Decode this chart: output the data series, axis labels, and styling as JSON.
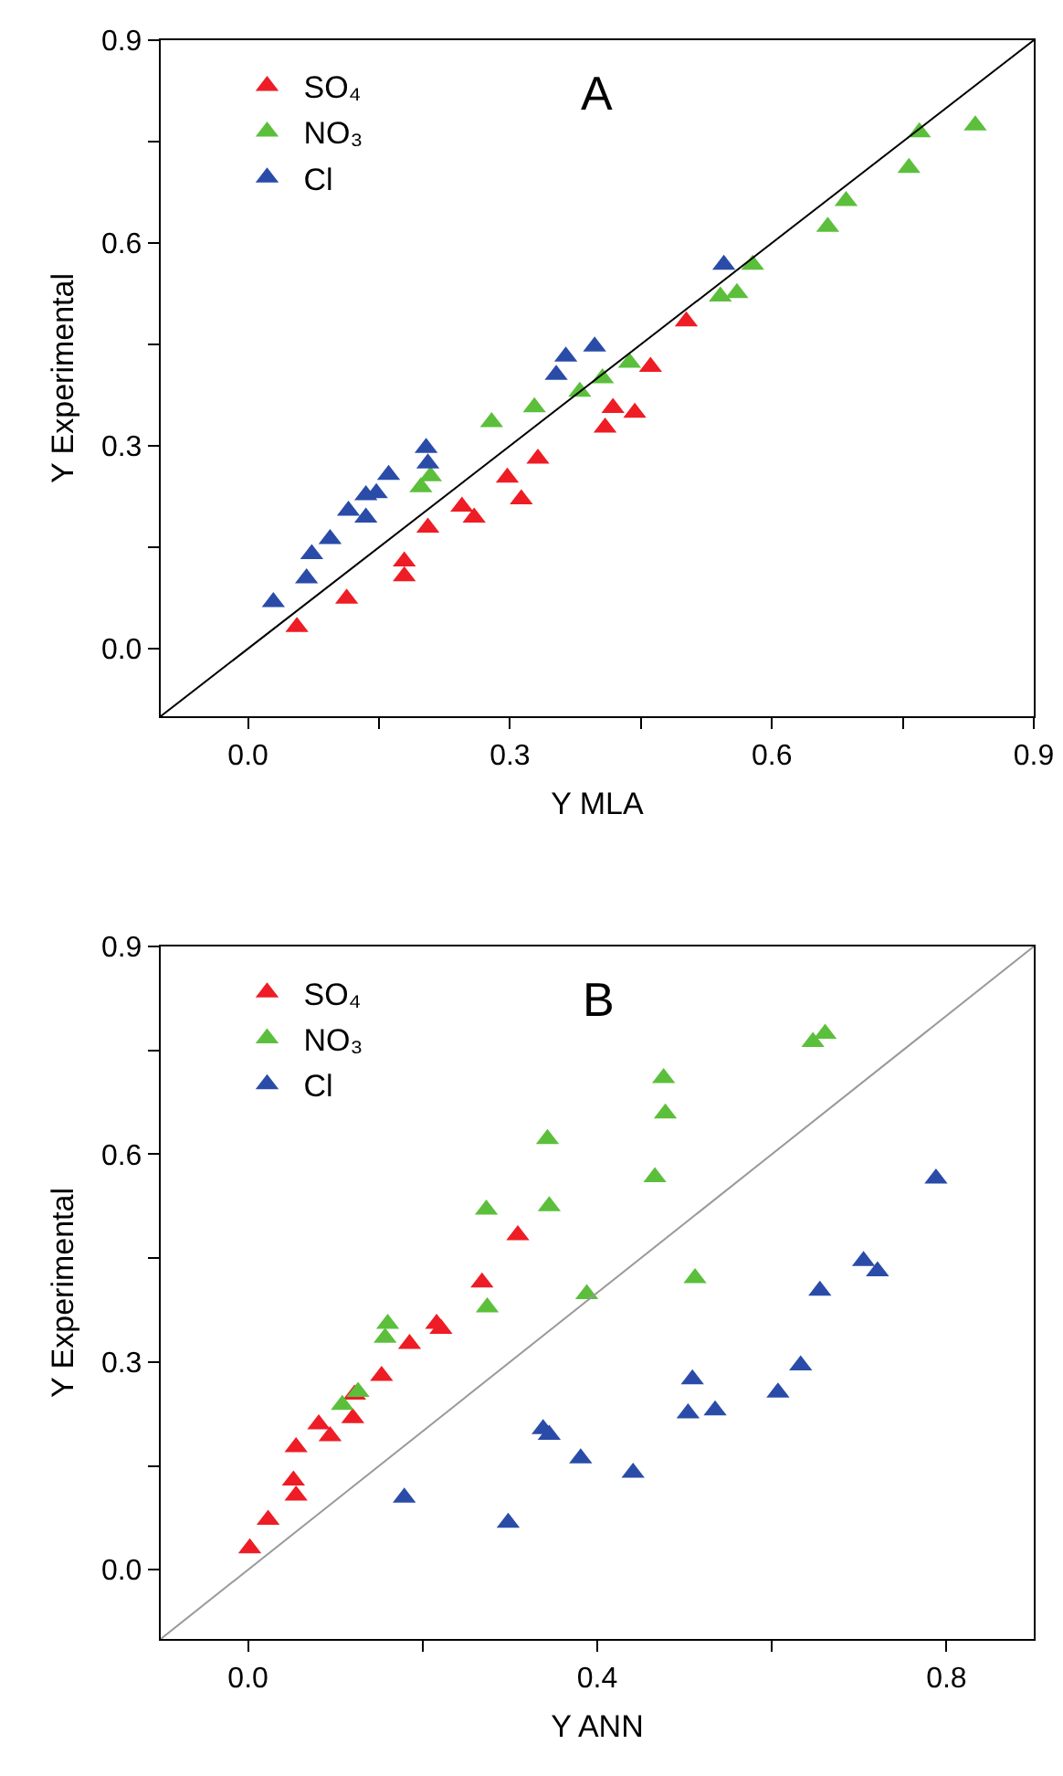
{
  "chart_data": [
    {
      "type": "scatter",
      "title": "A",
      "xlabel": "Y MLA",
      "ylabel": "Y Experimental",
      "xlim": [
        -0.1,
        0.9
      ],
      "ylim": [
        -0.1,
        0.9
      ],
      "xticks": [
        {
          "value": 0,
          "label": "0.0"
        },
        {
          "value": 0.15,
          "label": null
        },
        0.3,
        {
          "value": 0.45,
          "label": null
        },
        0.6,
        {
          "value": 0.75,
          "label": null
        },
        0.9
      ],
      "yticks": [
        {
          "value": 0,
          "label": "0.0"
        },
        {
          "value": 0.15,
          "label": null
        },
        0.3,
        {
          "value": 0.45,
          "label": null
        },
        0.6,
        {
          "value": 0.75,
          "label": null
        },
        0.9
      ],
      "legend": "top left",
      "marker": "triangle",
      "series": [
        {
          "name": "SO₄",
          "color": "#ee1c25",
          "x": [
            0.056,
            0.113,
            0.179,
            0.179,
            0.206,
            0.245,
            0.259,
            0.297,
            0.313,
            0.332,
            0.409,
            0.418,
            0.443,
            0.461,
            0.502
          ],
          "values": [
            0.032,
            0.074,
            0.129,
            0.107,
            0.179,
            0.21,
            0.194,
            0.253,
            0.221,
            0.281,
            0.327,
            0.356,
            0.349,
            0.417,
            0.484
          ]
        },
        {
          "name": "NO₃",
          "color": "#5cbf3c",
          "x": [
            0.198,
            0.209,
            0.279,
            0.328,
            0.38,
            0.406,
            0.437,
            0.541,
            0.56,
            0.578,
            0.664,
            0.685,
            0.757,
            0.769,
            0.833
          ],
          "values": [
            0.239,
            0.255,
            0.335,
            0.357,
            0.38,
            0.4,
            0.423,
            0.521,
            0.526,
            0.568,
            0.624,
            0.662,
            0.711,
            0.764,
            0.774
          ]
        },
        {
          "name": "Cl",
          "color": "#2a4ca8",
          "x": [
            0.029,
            0.067,
            0.073,
            0.094,
            0.115,
            0.135,
            0.135,
            0.147,
            0.161,
            0.204,
            0.206,
            0.353,
            0.364,
            0.397,
            0.545
          ],
          "values": [
            0.069,
            0.104,
            0.14,
            0.162,
            0.204,
            0.194,
            0.227,
            0.23,
            0.257,
            0.297,
            0.274,
            0.405,
            0.432,
            0.447,
            0.568
          ]
        },
        {
          "type": "line",
          "marker": "none",
          "color": "#000000",
          "line_style": "solid",
          "x": [
            -0.1,
            0.9
          ],
          "values": [
            -0.1,
            0.9
          ]
        }
      ]
    },
    {
      "type": "scatter",
      "title": "B",
      "xlabel": "Y ANN",
      "ylabel": "Y Experimental",
      "xlim": [
        -0.1,
        0.9
      ],
      "ylim": [
        -0.1,
        0.9
      ],
      "xticks": [
        {
          "value": 0,
          "label": "0.0"
        },
        {
          "value": 0.2,
          "label": null
        },
        0.4,
        {
          "value": 0.6,
          "label": null
        },
        0.8
      ],
      "yticks": [
        {
          "value": 0,
          "label": "0.0"
        },
        {
          "value": 0.15,
          "label": null
        },
        0.3,
        {
          "value": 0.45,
          "label": null
        },
        0.6,
        {
          "value": 0.75,
          "label": null
        },
        0.9
      ],
      "legend": "top left",
      "marker": "triangle",
      "series": [
        {
          "name": "SO₄",
          "color": "#ee1c25",
          "x": [
            0.002,
            0.023,
            0.055,
            0.052,
            0.055,
            0.081,
            0.094,
            0.12,
            0.122,
            0.153,
            0.185,
            0.216,
            0.221,
            0.268,
            0.309
          ],
          "values": [
            0.031,
            0.072,
            0.107,
            0.129,
            0.177,
            0.21,
            0.193,
            0.219,
            0.253,
            0.28,
            0.326,
            0.355,
            0.348,
            0.415,
            0.483
          ]
        },
        {
          "name": "NO₃",
          "color": "#5cbf3c",
          "x": [
            0.108,
            0.126,
            0.157,
            0.16,
            0.274,
            0.273,
            0.343,
            0.345,
            0.388,
            0.466,
            0.476,
            0.478,
            0.512,
            0.647,
            0.661
          ],
          "values": [
            0.238,
            0.257,
            0.335,
            0.355,
            0.379,
            0.52,
            0.622,
            0.525,
            0.398,
            0.567,
            0.71,
            0.659,
            0.421,
            0.762,
            0.774
          ]
        },
        {
          "name": "Cl",
          "color": "#2a4ca8",
          "x": [
            0.179,
            0.298,
            0.338,
            0.345,
            0.381,
            0.441,
            0.504,
            0.509,
            0.535,
            0.607,
            0.633,
            0.655,
            0.705,
            0.721,
            0.788
          ],
          "values": [
            0.104,
            0.068,
            0.203,
            0.195,
            0.161,
            0.14,
            0.226,
            0.275,
            0.23,
            0.256,
            0.295,
            0.403,
            0.446,
            0.431,
            0.565
          ]
        },
        {
          "type": "line",
          "marker": "none",
          "color": "#999999",
          "line_style": "solid",
          "x": [
            -0.1,
            0.9
          ],
          "values": [
            -0.1,
            0.9
          ]
        }
      ]
    }
  ]
}
